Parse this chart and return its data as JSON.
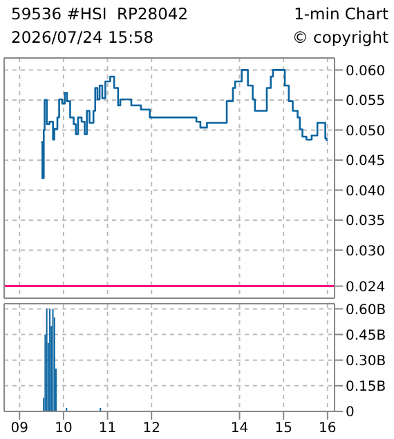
{
  "chart_data": [
    {
      "type": "step",
      "title": "59536 #HSI  RP28042",
      "subtitle": "2026/07/24 15:58",
      "annotations": [
        "1-min Chart",
        "© copyright"
      ],
      "x": [
        9.49,
        9.52,
        9.55,
        9.57,
        9.62,
        9.68,
        9.76,
        9.79,
        9.86,
        9.9,
        9.97,
        10.03,
        10.08,
        10.15,
        10.23,
        10.28,
        10.33,
        10.41,
        10.48,
        10.53,
        10.59,
        10.64,
        10.68,
        10.72,
        10.77,
        10.82,
        10.88,
        10.95,
        11.06,
        11.15,
        11.24,
        11.29,
        11.54,
        11.76,
        11.96,
        13.02,
        13.11,
        13.26,
        13.67,
        13.71,
        13.85,
        13.9,
        14.05,
        14.17,
        14.19,
        14.3,
        14.35,
        14.57,
        14.62,
        14.71,
        14.76,
        14.98,
        15.03,
        15.12,
        15.21,
        15.32,
        15.37,
        15.43,
        15.52,
        15.64,
        15.77,
        15.91,
        15.95,
        15.98
      ],
      "values": [
        0.048,
        0.042,
        0.05,
        0.055,
        0.051,
        0.0514,
        0.0484,
        0.0502,
        0.0521,
        0.0551,
        0.0544,
        0.0562,
        0.0548,
        0.0521,
        0.051,
        0.0493,
        0.0521,
        0.0514,
        0.0493,
        0.0532,
        0.0512,
        0.0512,
        0.0532,
        0.057,
        0.0551,
        0.0574,
        0.0553,
        0.0581,
        0.0589,
        0.057,
        0.0541,
        0.0551,
        0.0541,
        0.0534,
        0.0521,
        0.0514,
        0.0504,
        0.0512,
        0.0512,
        0.0548,
        0.057,
        0.0581,
        0.06,
        0.06,
        0.0574,
        0.0551,
        0.0532,
        0.0532,
        0.057,
        0.0589,
        0.06,
        0.06,
        0.0574,
        0.0548,
        0.0532,
        0.0521,
        0.0501,
        0.0489,
        0.0484,
        0.0491,
        0.0512,
        0.0512,
        0.0486,
        0.0482
      ],
      "color": "#0a64a0",
      "xlim": [
        8.65,
        16.16
      ],
      "xticks": [
        9,
        10,
        11,
        12,
        14,
        15,
        16
      ],
      "ylim": [
        0.022,
        0.062
      ],
      "yticks": [
        {
          "value": 0.024,
          "label": "0.024"
        },
        {
          "value": 0.03,
          "label": "0.030"
        },
        0.035,
        {
          "value": 0.04,
          "label": "0.040"
        },
        0.045,
        {
          "value": 0.05,
          "label": "0.050"
        },
        0.055,
        {
          "value": 0.06,
          "label": "0.060"
        }
      ],
      "grid": true,
      "tick_labels": "y",
      "ref_lines": [
        {
          "axis": "y",
          "value": 0.024,
          "color": "#ff0a84"
        }
      ]
    },
    {
      "type": "bar",
      "color": "#0a64a0",
      "x": [
        9.55,
        9.585,
        9.62,
        9.655,
        9.69,
        9.725,
        9.76,
        9.795,
        9.83,
        10.07,
        10.84
      ],
      "values": [
        0.08,
        0.45,
        0.6,
        0.4,
        0.6,
        0.5,
        0.6,
        0.55,
        0.25,
        0.02,
        0.02
      ],
      "xlim": [
        8.65,
        16.16
      ],
      "xticks": [
        {
          "value": 9,
          "label": "09"
        },
        {
          "value": 10,
          "label": "10"
        },
        {
          "value": 11,
          "label": "11"
        },
        {
          "value": 12,
          "label": "12"
        },
        {
          "value": 14,
          "label": "14"
        },
        {
          "value": 15,
          "label": "15"
        },
        {
          "value": 16,
          "label": "16"
        }
      ],
      "ylim": [
        0,
        0.63
      ],
      "yticks": [
        0,
        {
          "value": 0.15,
          "label": "0.15B"
        },
        {
          "value": 0.3,
          "label": "0.30B"
        },
        {
          "value": 0.45,
          "label": "0.45B"
        },
        {
          "value": 0.6,
          "label": "0.60B"
        }
      ],
      "grid": true
    }
  ]
}
